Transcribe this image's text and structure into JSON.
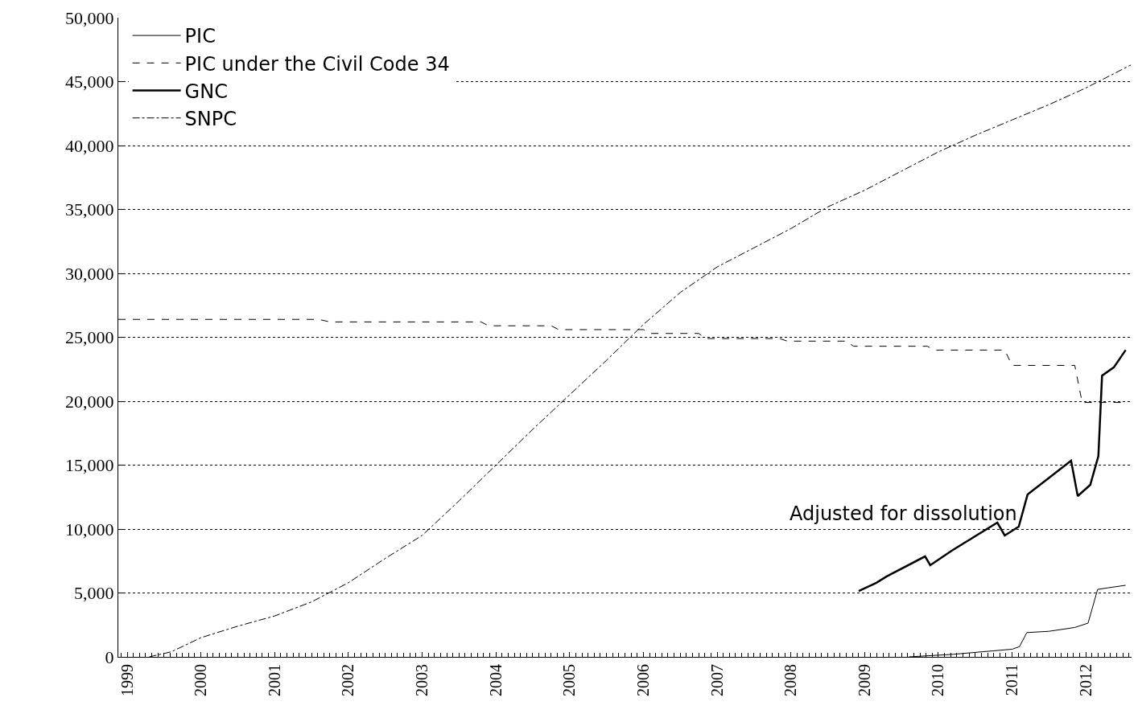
{
  "chart_data": {
    "type": "line",
    "xlim": [
      1998.88,
      2012.62
    ],
    "xticks": [
      1999,
      2000,
      2001,
      2002,
      2003,
      2004,
      2005,
      2006,
      2007,
      2008,
      2009,
      2010,
      2011,
      2012
    ],
    "ylim": [
      0,
      50000
    ],
    "yticks": [
      0,
      {
        "value": 5000,
        "label": "5,000"
      },
      {
        "value": 10000,
        "label": "10,000"
      },
      {
        "value": 15000,
        "label": "15,000"
      },
      {
        "value": 20000,
        "label": "20,000"
      },
      {
        "value": 25000,
        "label": "25,000"
      },
      {
        "value": 30000,
        "label": "30,000"
      },
      {
        "value": 35000,
        "label": "35,000"
      },
      {
        "value": 40000,
        "label": "40,000"
      },
      {
        "value": 45000,
        "label": "45,000"
      },
      {
        "value": 50000,
        "label": "50,000"
      }
    ],
    "grid": "y",
    "legend": "top left",
    "annotations": [
      {
        "text": "Adjusted for dissolution",
        "x": 2011.09,
        "y": 10190
      }
    ],
    "series": [
      {
        "name": "PIC",
        "color": "#000000",
        "line_style": "solid",
        "x": [
          2009.6,
          2010.2,
          2010.6,
          2011.0,
          2011.1,
          2011.2,
          2011.5,
          2011.85,
          2012.03,
          2012.16,
          2012.3,
          2012.54
        ],
        "values": [
          0,
          200,
          400,
          600,
          800,
          1900,
          2000,
          2300,
          2640,
          5280,
          5400,
          5600
        ]
      },
      {
        "name": "PIC under the Civil Code 34",
        "color": "#000000",
        "line_style": "dashed",
        "x": [
          1998.88,
          2001.6,
          2001.75,
          2003.8,
          2003.9,
          2004.75,
          2004.85,
          2006.0,
          2006.1,
          2006.75,
          2006.85,
          2007.85,
          2007.95,
          2008.75,
          2008.85,
          2009.85,
          2009.95,
          2010.9,
          2011.0,
          2011.85,
          2011.95,
          2012.54
        ],
        "values": [
          26400,
          26400,
          26200,
          26200,
          25900,
          25900,
          25600,
          25600,
          25300,
          25300,
          24900,
          24900,
          24700,
          24700,
          24300,
          24300,
          24000,
          24000,
          22800,
          22800,
          19900,
          19900
        ]
      },
      {
        "name": "GNC",
        "color": "#000000",
        "line_style": "solid",
        "x": [
          2008.92,
          2009.16,
          2009.3,
          2009.82,
          2009.89,
          2010.18,
          2010.8,
          2010.9,
          2011.09,
          2011.21,
          2011.8,
          2011.89,
          2012.06,
          2012.17,
          2012.22,
          2012.38,
          2012.54
        ],
        "values": [
          5150,
          5800,
          6300,
          7860,
          7170,
          8300,
          10500,
          9500,
          10190,
          12700,
          15350,
          12580,
          13460,
          15700,
          22000,
          22650,
          24000
        ]
      },
      {
        "name": "SNPC",
        "color": "#000000",
        "line_style": "dashdot",
        "x": [
          1999.3,
          1999.6,
          2000.0,
          2000.5,
          2001.0,
          2001.5,
          2002.0,
          2002.5,
          2003.0,
          2003.5,
          2004.0,
          2004.5,
          2005.0,
          2005.5,
          2006.0,
          2006.5,
          2007.0,
          2007.5,
          2008.0,
          2008.5,
          2009.0,
          2009.5,
          2010.0,
          2010.5,
          2011.0,
          2011.5,
          2012.0,
          2012.61
        ],
        "values": [
          0,
          400,
          1500,
          2400,
          3200,
          4300,
          5800,
          7700,
          9500,
          12200,
          15000,
          17800,
          20500,
          23200,
          26000,
          28500,
          30500,
          32000,
          33500,
          35200,
          36500,
          38000,
          39500,
          40800,
          42000,
          43200,
          44500,
          46300
        ]
      }
    ]
  }
}
